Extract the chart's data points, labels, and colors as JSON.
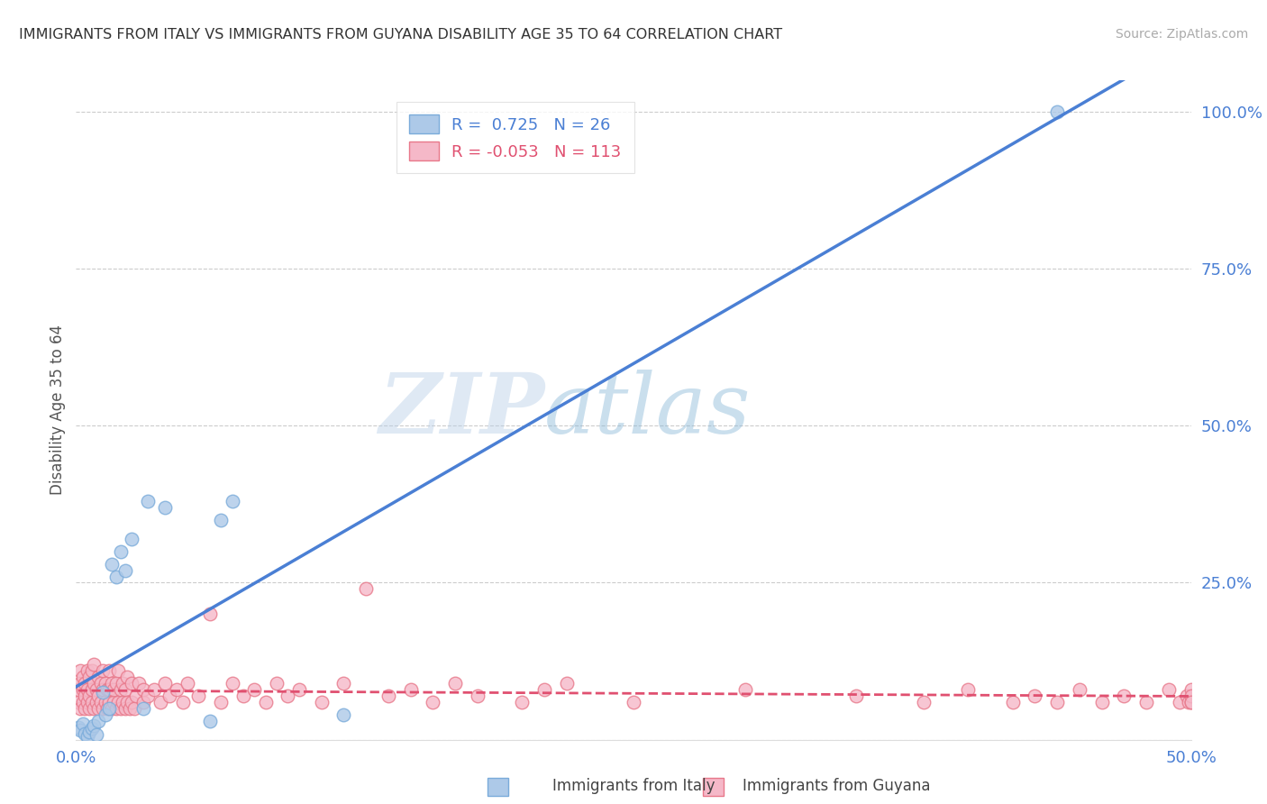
{
  "title": "IMMIGRANTS FROM ITALY VS IMMIGRANTS FROM GUYANA DISABILITY AGE 35 TO 64 CORRELATION CHART",
  "source": "Source: ZipAtlas.com",
  "ylabel": "Disability Age 35 to 64",
  "xlim": [
    0.0,
    0.5
  ],
  "ylim": [
    -0.02,
    1.1
  ],
  "plot_ylim": [
    0.0,
    1.05
  ],
  "xticks": [
    0.0,
    0.1,
    0.2,
    0.3,
    0.4,
    0.5
  ],
  "xticklabels": [
    "0.0%",
    "",
    "",
    "",
    "",
    "50.0%"
  ],
  "yticks_right": [
    0.25,
    0.5,
    0.75,
    1.0
  ],
  "yticklabels_right": [
    "25.0%",
    "50.0%",
    "75.0%",
    "100.0%"
  ],
  "italy_color": "#adc9e8",
  "italy_edge": "#7aabda",
  "guyana_color": "#f5b8c8",
  "guyana_edge": "#e8788a",
  "italy_R": 0.725,
  "italy_N": 26,
  "guyana_R": -0.053,
  "guyana_N": 113,
  "italy_line_color": "#4a7fd4",
  "guyana_line_color": "#e05070",
  "watermark_zip": "ZIP",
  "watermark_atlas": "atlas",
  "legend_label_italy": "Immigrants from Italy",
  "legend_label_guyana": "Immigrants from Guyana",
  "italy_x": [
    0.001,
    0.002,
    0.003,
    0.004,
    0.005,
    0.006,
    0.007,
    0.008,
    0.009,
    0.01,
    0.012,
    0.013,
    0.015,
    0.016,
    0.018,
    0.02,
    0.022,
    0.025,
    0.03,
    0.032,
    0.04,
    0.06,
    0.065,
    0.07,
    0.12,
    0.44
  ],
  "italy_y": [
    0.02,
    0.015,
    0.025,
    0.01,
    0.005,
    0.012,
    0.018,
    0.022,
    0.008,
    0.03,
    0.075,
    0.04,
    0.05,
    0.28,
    0.26,
    0.3,
    0.27,
    0.32,
    0.05,
    0.38,
    0.37,
    0.03,
    0.35,
    0.38,
    0.04,
    1.0
  ],
  "guyana_x": [
    0.001,
    0.001,
    0.002,
    0.002,
    0.002,
    0.003,
    0.003,
    0.003,
    0.004,
    0.004,
    0.004,
    0.005,
    0.005,
    0.005,
    0.006,
    0.006,
    0.006,
    0.007,
    0.007,
    0.007,
    0.008,
    0.008,
    0.008,
    0.009,
    0.009,
    0.01,
    0.01,
    0.01,
    0.011,
    0.011,
    0.012,
    0.012,
    0.012,
    0.013,
    0.013,
    0.014,
    0.014,
    0.015,
    0.015,
    0.015,
    0.016,
    0.016,
    0.017,
    0.017,
    0.018,
    0.018,
    0.019,
    0.019,
    0.02,
    0.02,
    0.021,
    0.021,
    0.022,
    0.022,
    0.023,
    0.023,
    0.024,
    0.025,
    0.025,
    0.026,
    0.027,
    0.028,
    0.03,
    0.03,
    0.032,
    0.035,
    0.038,
    0.04,
    0.042,
    0.045,
    0.048,
    0.05,
    0.055,
    0.06,
    0.065,
    0.07,
    0.075,
    0.08,
    0.085,
    0.09,
    0.095,
    0.1,
    0.11,
    0.12,
    0.13,
    0.14,
    0.15,
    0.16,
    0.17,
    0.18,
    0.2,
    0.21,
    0.22,
    0.25,
    0.3,
    0.35,
    0.38,
    0.4,
    0.42,
    0.43,
    0.44,
    0.45,
    0.46,
    0.47,
    0.48,
    0.49,
    0.495,
    0.498,
    0.499,
    0.5,
    0.5,
    0.5,
    0.5
  ],
  "guyana_y": [
    0.06,
    0.08,
    0.05,
    0.09,
    0.11,
    0.06,
    0.08,
    0.1,
    0.05,
    0.07,
    0.09,
    0.06,
    0.08,
    0.11,
    0.05,
    0.07,
    0.1,
    0.06,
    0.08,
    0.11,
    0.05,
    0.09,
    0.12,
    0.06,
    0.08,
    0.05,
    0.07,
    0.1,
    0.06,
    0.09,
    0.05,
    0.08,
    0.11,
    0.06,
    0.09,
    0.05,
    0.08,
    0.06,
    0.08,
    0.11,
    0.05,
    0.09,
    0.06,
    0.08,
    0.05,
    0.09,
    0.06,
    0.11,
    0.05,
    0.08,
    0.06,
    0.09,
    0.05,
    0.08,
    0.06,
    0.1,
    0.05,
    0.06,
    0.09,
    0.05,
    0.07,
    0.09,
    0.06,
    0.08,
    0.07,
    0.08,
    0.06,
    0.09,
    0.07,
    0.08,
    0.06,
    0.09,
    0.07,
    0.2,
    0.06,
    0.09,
    0.07,
    0.08,
    0.06,
    0.09,
    0.07,
    0.08,
    0.06,
    0.09,
    0.24,
    0.07,
    0.08,
    0.06,
    0.09,
    0.07,
    0.06,
    0.08,
    0.09,
    0.06,
    0.08,
    0.07,
    0.06,
    0.08,
    0.06,
    0.07,
    0.06,
    0.08,
    0.06,
    0.07,
    0.06,
    0.08,
    0.06,
    0.07,
    0.06,
    0.08,
    0.06,
    0.07,
    0.06
  ],
  "grid_yticks": [
    0.0,
    0.25,
    0.5,
    0.75,
    1.0
  ],
  "grid_color": "#cccccc",
  "tick_color": "#4a7fd4",
  "axis_label_color": "#555555"
}
